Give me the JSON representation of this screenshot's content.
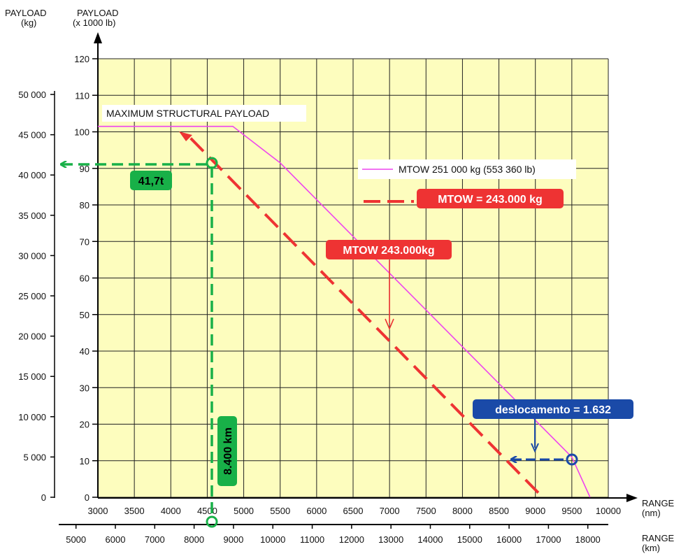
{
  "chart_data": {
    "type": "line",
    "y_axis_left": {
      "title_line1": "PAYLOAD",
      "title_line2": "(kg)",
      "ticks": [
        "0",
        "5 000",
        "10 000",
        "15 000",
        "20 000",
        "25 000",
        "30 000",
        "35 000",
        "40 000",
        "45 000",
        "50 000"
      ]
    },
    "y_axis_right": {
      "title_line1": "PAYLOAD",
      "title_line2": "(x 1000 lb)",
      "ticks": [
        "0",
        "10",
        "20",
        "30",
        "40",
        "50",
        "60",
        "70",
        "80",
        "90",
        "100",
        "110",
        "120"
      ],
      "range": [
        0,
        120
      ]
    },
    "x_axis_nm": {
      "title_line1": "RANGE",
      "title_line2": "(nm)",
      "ticks": [
        "3000",
        "3500",
        "4000",
        "4500",
        "5000",
        "5500",
        "6000",
        "6500",
        "7000",
        "7500",
        "8000",
        "8500",
        "9000",
        "9500",
        "10000"
      ],
      "range": [
        3000,
        10000
      ]
    },
    "x_axis_km": {
      "title_line1": "RANGE",
      "title_line2": "(km)",
      "ticks": [
        "5000",
        "6000",
        "7000",
        "8000",
        "9000",
        "10000",
        "11000",
        "12000",
        "13000",
        "14000",
        "15000",
        "16000",
        "17000",
        "18000"
      ]
    },
    "plot_label": "MAXIMUM STRUCTURAL PAYLOAD",
    "grid": true,
    "background": "#fdfdbe",
    "series": [
      {
        "name": "MTOW 251 000 kg (553 360 lb)",
        "color": "#ee44ee",
        "style": "solid",
        "x": [
          3000,
          4850,
          5500,
          9500,
          9750
        ],
        "y": [
          101.5,
          101.5,
          91.5,
          11,
          0
        ]
      },
      {
        "name": "MTOW = 243.000 kg",
        "color": "#ee3333",
        "style": "dashed",
        "x": [
          4100,
          9100
        ],
        "y": [
          101.5,
          0
        ]
      }
    ],
    "annotations": {
      "mtow_callout": "MTOW 243.000kg",
      "payload_callout": "41,7t",
      "range_callout": "8.400 km",
      "shift_callout": "deslocamento = 1.632"
    },
    "colors": {
      "green": "#18b048",
      "green_dark": "#0f8f3a",
      "blue": "#1a4aa8",
      "red": "#ee3333",
      "magenta": "#ee44ee"
    }
  }
}
